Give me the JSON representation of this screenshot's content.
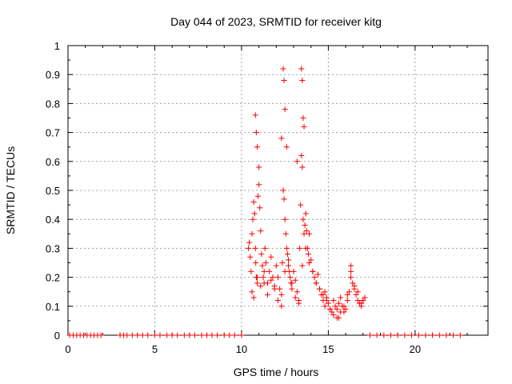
{
  "chart_data": {
    "type": "scatter",
    "title": "Day 044 of 2023, SRMTID for receiver kitg",
    "xlabel": "GPS time / hours",
    "ylabel": "SRMTID / TECUs",
    "xlim": [
      0,
      24.2
    ],
    "ylim": [
      0,
      1
    ],
    "xticks": [
      0,
      5,
      10,
      15,
      20
    ],
    "xtick_labels": [
      "0",
      "5",
      "10",
      "15",
      "20"
    ],
    "yticks": [
      0,
      0.1,
      0.2,
      0.3,
      0.4,
      0.5,
      0.6,
      0.7,
      0.8,
      0.9,
      1
    ],
    "ytick_labels": [
      "0",
      "0.1",
      "0.2",
      "0.3",
      "0.4",
      "0.5",
      "0.6",
      "0.7",
      "0.8",
      "0.9",
      "1"
    ],
    "grid": true,
    "marker": "+",
    "color": "#ff0000",
    "series": [
      {
        "name": "SRMTID",
        "x": [
          0.1,
          0.3,
          0.5,
          0.7,
          0.9,
          1.1,
          1.3,
          1.5,
          1.7,
          1.9,
          3.0,
          3.2,
          3.4,
          3.7,
          4.0,
          4.3,
          4.6,
          5.0,
          5.3,
          5.7,
          6.0,
          6.3,
          6.7,
          7.0,
          7.3,
          7.7,
          8.0,
          8.3,
          8.6,
          9.0,
          9.3,
          9.6,
          10.0,
          10.4,
          10.45,
          10.5,
          10.55,
          10.6,
          10.65,
          10.7,
          10.75,
          10.8,
          10.82,
          10.85,
          10.9,
          10.95,
          11.0,
          11.05,
          11.1,
          11.15,
          11.2,
          11.25,
          11.3,
          11.35,
          11.4,
          11.5,
          11.6,
          11.7,
          11.8,
          11.9,
          12.0,
          12.1,
          12.2,
          12.3,
          12.35,
          12.4,
          12.45,
          12.5,
          12.55,
          12.6,
          12.65,
          12.7,
          12.75,
          12.8,
          12.85,
          12.9,
          13.0,
          13.1,
          13.2,
          13.3,
          13.35,
          13.4,
          13.45,
          13.5,
          13.55,
          13.6,
          13.65,
          13.7,
          13.75,
          13.8,
          13.85,
          13.9,
          14.0,
          14.1,
          14.2,
          14.3,
          14.4,
          14.5,
          14.6,
          14.7,
          14.8,
          14.9,
          15.0,
          15.1,
          15.2,
          15.3,
          15.4,
          15.5,
          15.6,
          15.7,
          15.8,
          15.9,
          16.0,
          16.1,
          16.2,
          16.3,
          16.4,
          16.5,
          16.6,
          16.7,
          16.8,
          16.9,
          17.0,
          17.1,
          10.6,
          10.7,
          10.9,
          11.1,
          11.3,
          11.5,
          11.7,
          11.9,
          12.1,
          12.3,
          12.5,
          12.7,
          12.9,
          13.1,
          13.3,
          13.5,
          13.7,
          13.9,
          14.1,
          14.3,
          14.5,
          14.7,
          14.9,
          15.1,
          15.3,
          15.5,
          15.7,
          15.9,
          16.1,
          16.3,
          16.5,
          16.7,
          16.9,
          10.8,
          10.85,
          10.9,
          11.0,
          12.4,
          12.45,
          12.5,
          13.45,
          13.5,
          13.55,
          13.6,
          17.4,
          17.8,
          18.2,
          18.6,
          19.0,
          19.4,
          19.8,
          20.2,
          20.6,
          21.0,
          21.4,
          21.8,
          22.2,
          22.6,
          12.3,
          12.6,
          13.2,
          14.8,
          15.6,
          16.3,
          17.0
        ],
        "y": [
          0,
          0,
          0,
          0,
          0,
          0,
          0,
          0,
          0,
          0,
          0,
          0,
          0,
          0,
          0,
          0,
          0,
          0,
          0,
          0,
          0,
          0,
          0,
          0,
          0,
          0,
          0,
          0,
          0,
          0,
          0,
          0,
          0,
          0.3,
          0.32,
          0.27,
          0.22,
          0.35,
          0.4,
          0.46,
          0.42,
          0.3,
          0.25,
          0.2,
          0.18,
          0.48,
          0.52,
          0.44,
          0.36,
          0.28,
          0.24,
          0.2,
          0.22,
          0.3,
          0.25,
          0.18,
          0.22,
          0.27,
          0.2,
          0.17,
          0.24,
          0.2,
          0.16,
          0.14,
          0.25,
          0.5,
          0.47,
          0.4,
          0.35,
          0.3,
          0.28,
          0.24,
          0.22,
          0.2,
          0.18,
          0.16,
          0.22,
          0.19,
          0.15,
          0.12,
          0.3,
          0.45,
          0.62,
          0.58,
          0.4,
          0.35,
          0.38,
          0.42,
          0.36,
          0.3,
          0.28,
          0.25,
          0.26,
          0.22,
          0.2,
          0.18,
          0.21,
          0.16,
          0.14,
          0.12,
          0.1,
          0.13,
          0.11,
          0.09,
          0.08,
          0.12,
          0.1,
          0.09,
          0.11,
          0.13,
          0.1,
          0.08,
          0.09,
          0.12,
          0.15,
          0.22,
          0.18,
          0.16,
          0.14,
          0.12,
          0.11,
          0.1,
          0.12,
          0.13,
          0.15,
          0.13,
          0.2,
          0.17,
          0.18,
          0.14,
          0.19,
          0.16,
          0.12,
          0.1,
          0.22,
          0.26,
          0.18,
          0.13,
          0.11,
          0.24,
          0.3,
          0.35,
          0.22,
          0.18,
          0.16,
          0.14,
          0.12,
          0.09,
          0.07,
          0.06,
          0.08,
          0.1,
          0.14,
          0.2,
          0.17,
          0.15,
          0.11,
          0.76,
          0.7,
          0.65,
          0.58,
          0.92,
          0.88,
          0.78,
          0.92,
          0.88,
          0.75,
          0.72,
          0,
          0,
          0,
          0,
          0,
          0,
          0,
          0,
          0,
          0,
          0,
          0,
          0,
          0,
          0.68,
          0.65,
          0.6,
          0.15,
          0.06,
          0.24,
          0.12
        ]
      }
    ]
  }
}
